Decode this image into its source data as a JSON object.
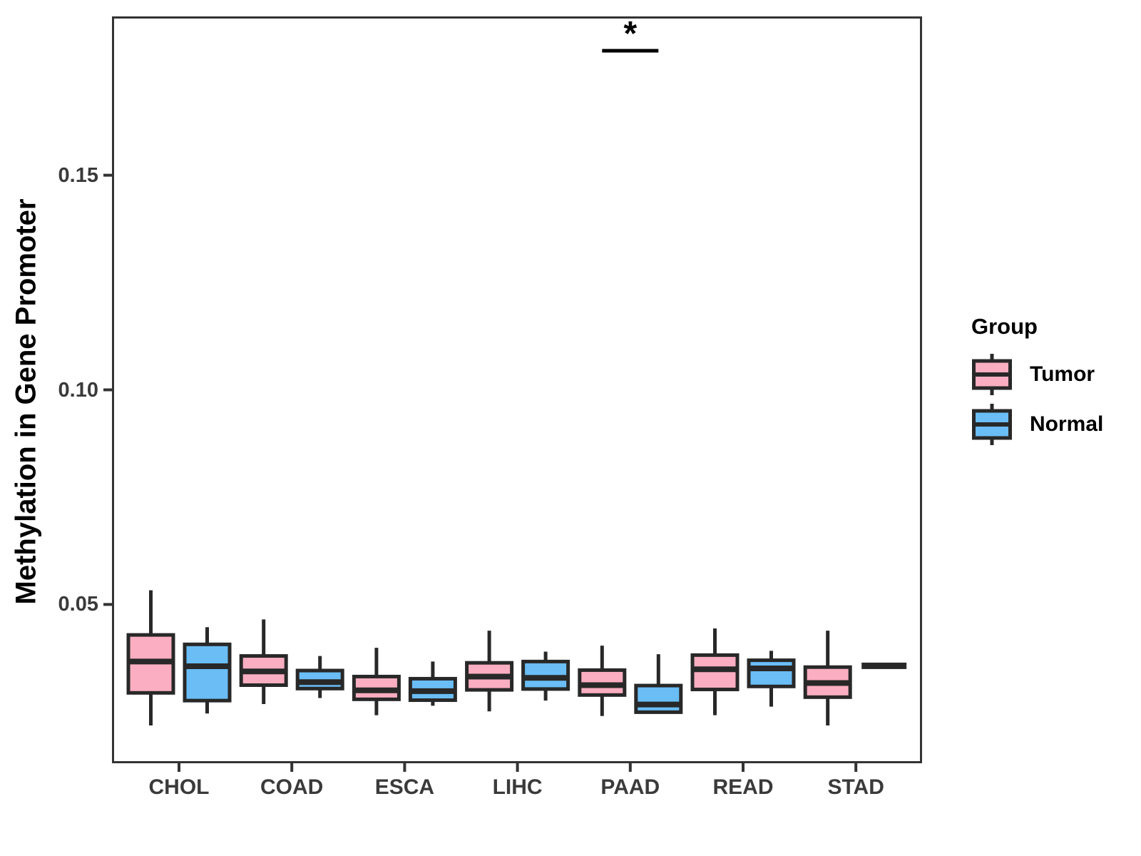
{
  "figure": {
    "background": "#ffffff",
    "y_axis_title": "Methylation in Gene Promoter"
  },
  "chart_data": {
    "type": "boxplot",
    "title": "",
    "xlabel": "",
    "ylabel": "Methylation in Gene Promoter",
    "categories": [
      "CHOL",
      "COAD",
      "ESCA",
      "LIHC",
      "PAAD",
      "READ",
      "STAD"
    ],
    "y_ticks": [
      {
        "value": 0.05,
        "label": "0.05"
      },
      {
        "value": 0.1,
        "label": "0.10"
      },
      {
        "value": 0.15,
        "label": "0.15"
      }
    ],
    "ylim": [
      0.013,
      0.187
    ],
    "grid": "off",
    "panel_border": "on",
    "legend": {
      "title": "Group",
      "position": "right",
      "entries": [
        {
          "label": "Tumor",
          "fill": "#FBAEC1"
        },
        {
          "label": "Normal",
          "fill": "#6ABDF5"
        }
      ]
    },
    "colors": {
      "tumor_fill": "#FBAEC1",
      "normal_fill": "#6ABDF5",
      "stroke": "#282828",
      "axis_text": "#3a3a3a",
      "panel_border": "#333333"
    },
    "series": [
      {
        "name": "Tumor",
        "fill": "#FBAEC1",
        "data": [
          {
            "category": "CHOL",
            "min": 0.0218,
            "q1": 0.0294,
            "median": 0.0367,
            "q3": 0.0429,
            "max": 0.0533
          },
          {
            "category": "COAD",
            "min": 0.0268,
            "q1": 0.0312,
            "median": 0.0344,
            "q3": 0.038,
            "max": 0.0465
          },
          {
            "category": "ESCA",
            "min": 0.0242,
            "q1": 0.0279,
            "median": 0.03,
            "q3": 0.0332,
            "max": 0.0399
          },
          {
            "category": "LIHC",
            "min": 0.0251,
            "q1": 0.0301,
            "median": 0.0332,
            "q3": 0.0364,
            "max": 0.0439
          },
          {
            "category": "PAAD",
            "min": 0.024,
            "q1": 0.0289,
            "median": 0.0312,
            "q3": 0.0347,
            "max": 0.0404
          },
          {
            "category": "READ",
            "min": 0.0242,
            "q1": 0.0302,
            "median": 0.0349,
            "q3": 0.0382,
            "max": 0.0444
          },
          {
            "category": "STAD",
            "min": 0.0218,
            "q1": 0.0284,
            "median": 0.0317,
            "q3": 0.0354,
            "max": 0.0439
          }
        ]
      },
      {
        "name": "Normal",
        "fill": "#6ABDF5",
        "data": [
          {
            "category": "CHOL",
            "min": 0.0246,
            "q1": 0.0276,
            "median": 0.0356,
            "q3": 0.0407,
            "max": 0.0447
          },
          {
            "category": "COAD",
            "min": 0.0282,
            "q1": 0.0304,
            "median": 0.0319,
            "q3": 0.0346,
            "max": 0.038
          },
          {
            "category": "ESCA",
            "min": 0.0264,
            "q1": 0.0277,
            "median": 0.0298,
            "q3": 0.0327,
            "max": 0.0367
          },
          {
            "category": "LIHC",
            "min": 0.0276,
            "q1": 0.0303,
            "median": 0.0329,
            "q3": 0.0367,
            "max": 0.039
          },
          {
            "category": "PAAD",
            "min": 0.0249,
            "q1": 0.0249,
            "median": 0.0267,
            "q3": 0.0311,
            "max": 0.0384
          },
          {
            "category": "READ",
            "min": 0.0262,
            "q1": 0.0309,
            "median": 0.0351,
            "q3": 0.037,
            "max": 0.0392
          },
          {
            "category": "STAD",
            "median": 0.0357,
            "single_value": true
          }
        ]
      }
    ],
    "annotations": [
      {
        "text": "*",
        "category": "PAAD",
        "between": [
          "Tumor",
          "Normal"
        ],
        "y": 0.179
      }
    ]
  }
}
